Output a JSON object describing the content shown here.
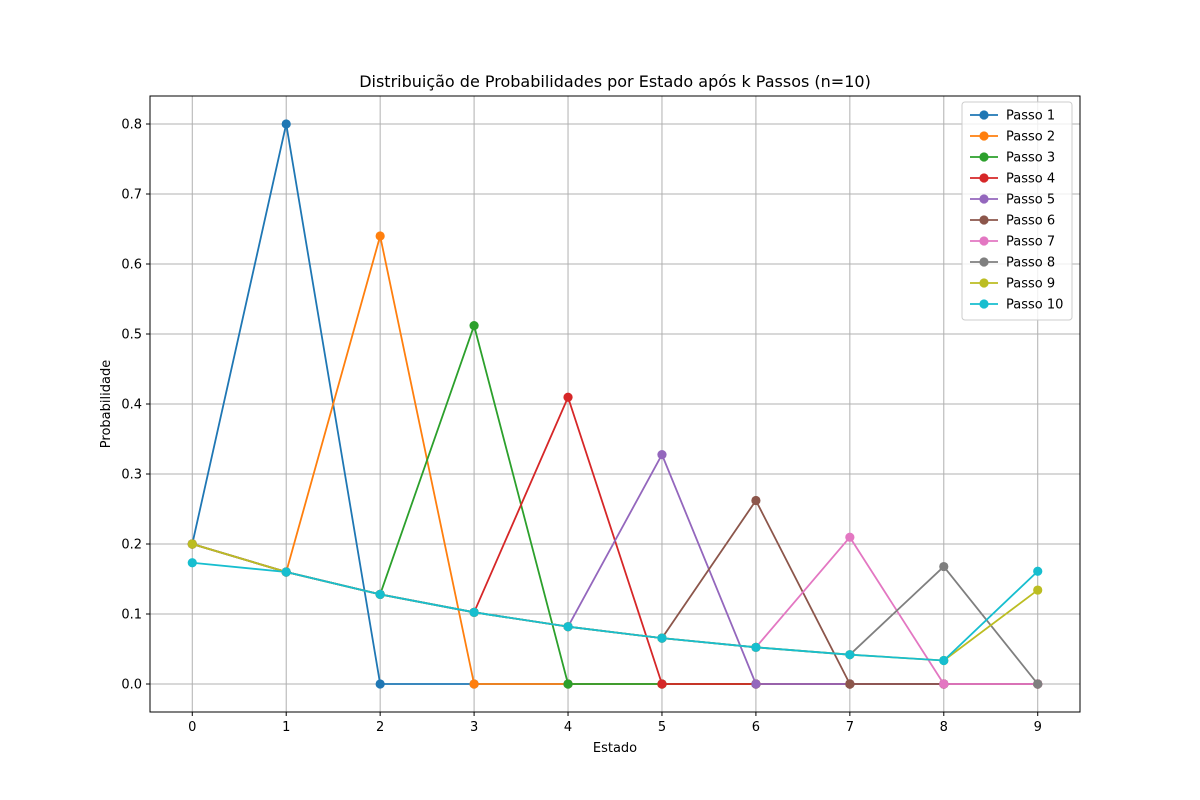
{
  "chart_data": {
    "type": "line",
    "title": "Distribuição de Probabilidades por Estado após k Passos (n=10)",
    "xlabel": "Estado",
    "ylabel": "Probabilidade",
    "x": [
      0,
      1,
      2,
      3,
      4,
      5,
      6,
      7,
      8,
      9
    ],
    "x_ticks": [
      "0",
      "1",
      "2",
      "3",
      "4",
      "5",
      "6",
      "7",
      "8",
      "9"
    ],
    "y_ticks": [
      "0.0",
      "0.1",
      "0.2",
      "0.3",
      "0.4",
      "0.5",
      "0.6",
      "0.7",
      "0.8"
    ],
    "xlim": [
      -0.45,
      9.45
    ],
    "ylim": [
      -0.04,
      0.84
    ],
    "grid": true,
    "legend_position": "top-right",
    "series": [
      {
        "name": "Passo 1",
        "color": "#1f77b4",
        "values": [
          0.2,
          0.8,
          0,
          0,
          0,
          0,
          0,
          0,
          0,
          0
        ]
      },
      {
        "name": "Passo 2",
        "color": "#ff7f0e",
        "values": [
          0.2,
          0.16,
          0.64,
          0,
          0,
          0,
          0,
          0,
          0,
          0
        ]
      },
      {
        "name": "Passo 3",
        "color": "#2ca02c",
        "values": [
          0.2,
          0.16,
          0.128,
          0.512,
          0,
          0,
          0,
          0,
          0,
          0
        ]
      },
      {
        "name": "Passo 4",
        "color": "#d62728",
        "values": [
          0.2,
          0.16,
          0.128,
          0.1024,
          0.4096,
          0,
          0,
          0,
          0,
          0
        ]
      },
      {
        "name": "Passo 5",
        "color": "#9467bd",
        "values": [
          0.2,
          0.16,
          0.128,
          0.1024,
          0.0819,
          0.3277,
          0,
          0,
          0,
          0
        ]
      },
      {
        "name": "Passo 6",
        "color": "#8c564b",
        "values": [
          0.2,
          0.16,
          0.128,
          0.1024,
          0.0819,
          0.0655,
          0.2621,
          0,
          0,
          0
        ]
      },
      {
        "name": "Passo 7",
        "color": "#e377c2",
        "values": [
          0.2,
          0.16,
          0.128,
          0.1024,
          0.0819,
          0.0655,
          0.0524,
          0.2097,
          0,
          0
        ]
      },
      {
        "name": "Passo 8",
        "color": "#7f7f7f",
        "values": [
          0.2,
          0.16,
          0.128,
          0.1024,
          0.0819,
          0.0655,
          0.0524,
          0.0419,
          0.1678,
          0
        ]
      },
      {
        "name": "Passo 9",
        "color": "#bcbd22",
        "values": [
          0.2,
          0.16,
          0.128,
          0.1024,
          0.0819,
          0.0655,
          0.0524,
          0.0419,
          0.0336,
          0.1342
        ]
      },
      {
        "name": "Passo 10",
        "color": "#17becf",
        "values": [
          0.1732,
          0.16,
          0.128,
          0.1024,
          0.0819,
          0.0655,
          0.0524,
          0.0419,
          0.0336,
          0.1611
        ]
      }
    ]
  }
}
